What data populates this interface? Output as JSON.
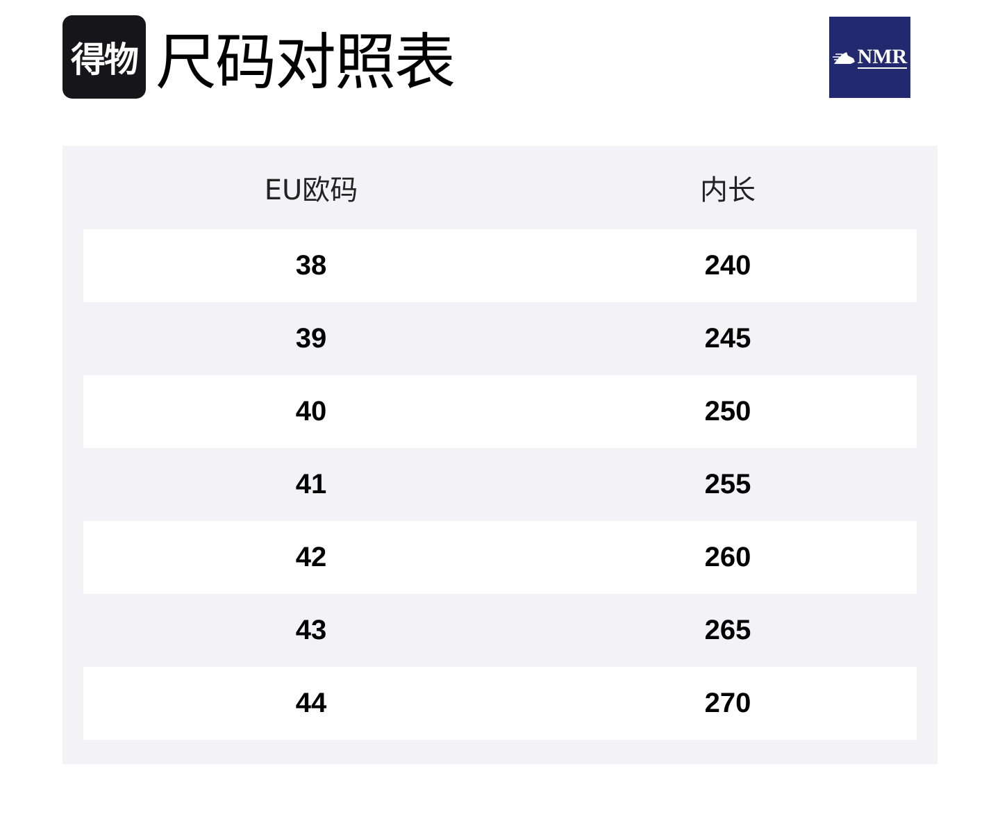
{
  "header": {
    "logo_text": "得物",
    "title": "尺码对照表",
    "brand_badge": "NMR",
    "brand_color": "#22296e"
  },
  "table": {
    "columns": [
      "EU欧码",
      "内长"
    ],
    "rows": [
      [
        "38",
        "240"
      ],
      [
        "39",
        "245"
      ],
      [
        "40",
        "250"
      ],
      [
        "41",
        "255"
      ],
      [
        "42",
        "260"
      ],
      [
        "43",
        "265"
      ],
      [
        "44",
        "270"
      ]
    ]
  }
}
